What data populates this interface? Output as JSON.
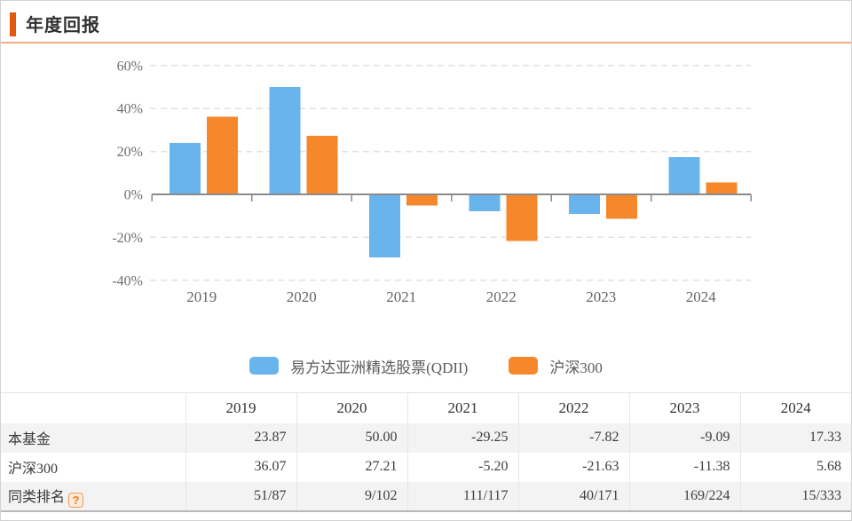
{
  "header": {
    "title": "年度回报"
  },
  "chart_data": {
    "type": "bar",
    "title": "年度回报",
    "xlabel": "",
    "ylabel": "",
    "categories": [
      "2019",
      "2020",
      "2021",
      "2022",
      "2023",
      "2024"
    ],
    "series": [
      {
        "name": "易方达亚洲精选股票(QDII)",
        "color": "#6ab4ee",
        "values": [
          23.87,
          50.0,
          -29.25,
          -7.82,
          -9.09,
          17.33
        ]
      },
      {
        "name": "沪深300",
        "color": "#f6882b",
        "values": [
          36.07,
          27.21,
          -5.2,
          -21.63,
          -11.38,
          5.68
        ]
      }
    ],
    "y_tick_values": [
      60,
      40,
      20,
      0,
      -20,
      -40
    ],
    "y_tick_labels": [
      "60%",
      "40%",
      "20%",
      "0%",
      "-20%",
      "-40%"
    ],
    "ylim": [
      -45,
      65
    ],
    "grid": true,
    "grid_style": "dashed",
    "legend_position": "bottom"
  },
  "table": {
    "columns": [
      "",
      "2019",
      "2020",
      "2021",
      "2022",
      "2023",
      "2024"
    ],
    "rows": [
      {
        "label": "本基金",
        "values": [
          "23.87",
          "50.00",
          "-29.25",
          "-7.82",
          "-9.09",
          "17.33"
        ]
      },
      {
        "label": "沪深300",
        "values": [
          "36.07",
          "27.21",
          "-5.20",
          "-21.63",
          "-11.38",
          "5.68"
        ]
      },
      {
        "label": "同类排名",
        "values": [
          "51/87",
          "9/102",
          "111/117",
          "40/171",
          "169/224",
          "15/333"
        ]
      }
    ],
    "help_icon": "?"
  },
  "colors": {
    "accent": "#e4580e",
    "header_underline": "#f3ad85",
    "fund_bar": "#6ab4ee",
    "benchmark_bar": "#f6882b",
    "zero_axis": "#8a8a8a",
    "gridline": "#e0e0e0",
    "row_stripe": "#f3f3f3"
  }
}
